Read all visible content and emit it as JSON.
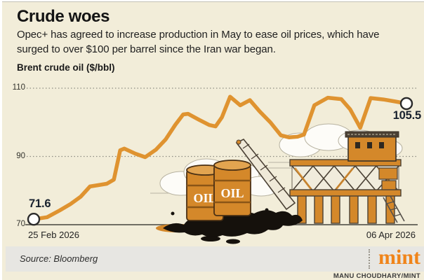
{
  "header": {
    "title": "Crude woes",
    "subtitle_line1": "Opec+ has agreed to increase production in May to ease oil prices, which have",
    "subtitle_line2": "surged to over $100 per barrel since the Iran war began.",
    "axis_title": "Brent crude oil ($/bbl)"
  },
  "chart_data": {
    "type": "line",
    "title": "Brent crude oil ($/bbl)",
    "ylabel": "$/bbl",
    "ylim": [
      70,
      112
    ],
    "y_ticks": [
      110,
      90,
      70
    ],
    "grid": "dotted horizontal",
    "x_start_label": "25 Feb 2026",
    "x_end_label": "06 Apr 2026",
    "x_unit": "fraction of date range 25 Feb 2026 - 06 Apr 2026",
    "start_point": {
      "label": "71.6",
      "value": 71.6
    },
    "end_point": {
      "label": "105.5",
      "value": 105.5
    },
    "line_color": "#df9330",
    "series": [
      [
        0.0,
        71.6
      ],
      [
        0.036,
        72.2
      ],
      [
        0.07,
        74.2
      ],
      [
        0.098,
        76.0
      ],
      [
        0.126,
        78.2
      ],
      [
        0.151,
        81.2
      ],
      [
        0.173,
        81.6
      ],
      [
        0.196,
        82.0
      ],
      [
        0.215,
        83.2
      ],
      [
        0.232,
        91.8
      ],
      [
        0.243,
        92.3
      ],
      [
        0.273,
        90.8
      ],
      [
        0.299,
        89.8
      ],
      [
        0.328,
        92.0
      ],
      [
        0.354,
        95.0
      ],
      [
        0.38,
        99.3
      ],
      [
        0.401,
        102.3
      ],
      [
        0.414,
        102.5
      ],
      [
        0.443,
        100.8
      ],
      [
        0.471,
        99.2
      ],
      [
        0.488,
        98.8
      ],
      [
        0.505,
        101.5
      ],
      [
        0.527,
        107.5
      ],
      [
        0.554,
        105.0
      ],
      [
        0.58,
        106.5
      ],
      [
        0.606,
        103.2
      ],
      [
        0.635,
        100.0
      ],
      [
        0.663,
        96.2
      ],
      [
        0.685,
        95.6
      ],
      [
        0.708,
        95.8
      ],
      [
        0.725,
        96.4
      ],
      [
        0.753,
        105.0
      ],
      [
        0.789,
        107.2
      ],
      [
        0.825,
        106.8
      ],
      [
        0.849,
        103.8
      ],
      [
        0.876,
        98.4
      ],
      [
        0.904,
        107.1
      ],
      [
        0.938,
        106.7
      ],
      [
        0.97,
        106.1
      ],
      [
        1.0,
        105.5
      ]
    ]
  },
  "illustration": {
    "barrel_label": "OIL"
  },
  "footer": {
    "source": "Source: Bloomberg",
    "logo": "mint",
    "credit": "MANU CHOUDHARY/MINT"
  }
}
